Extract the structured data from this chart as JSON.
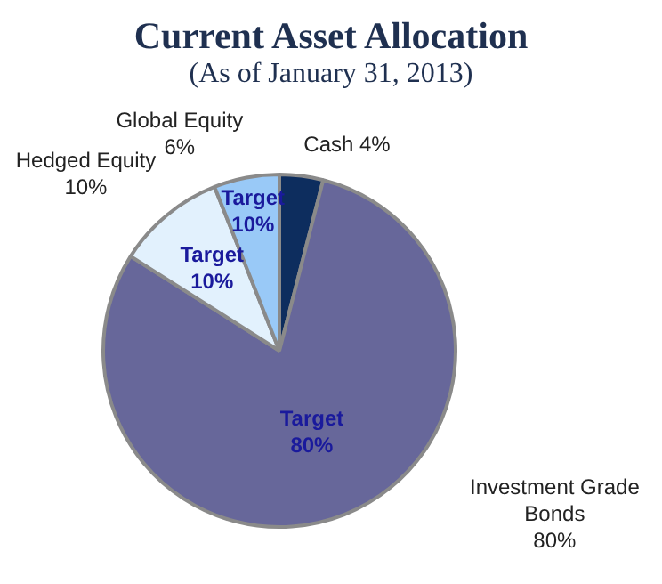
{
  "chart_data": {
    "type": "pie",
    "title": "Current Asset Allocation",
    "subtitle": "(As of January 31, 2013)",
    "categories": [
      "Cash",
      "Investment Grade Bonds",
      "Hedged Equity",
      "Global Equity"
    ],
    "values": [
      4,
      80,
      10,
      6
    ],
    "value_labels": [
      "4%",
      "80%",
      "10%",
      "6%"
    ],
    "colors": [
      "#0d2d5e",
      "#67679a",
      "#e2f1fd",
      "#99c9f7"
    ],
    "annotations": [
      {
        "text": "Target 80%",
        "x": "Investment Grade Bonds"
      },
      {
        "text": "Target 10%",
        "x": "Hedged Equity"
      },
      {
        "text": "Target 10%",
        "x": "Global Equity"
      }
    ],
    "legend": false
  }
}
